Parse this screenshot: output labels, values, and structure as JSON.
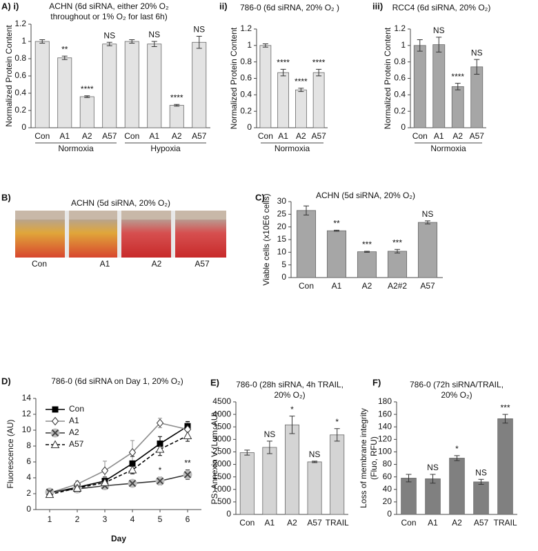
{
  "chart_data": [
    {
      "type": "bar",
      "panel": "A) i)",
      "title": [
        "ACHN (6d siRNA, either 20% O₂",
        "throughout or 1% O₂ for last 6h)"
      ],
      "ylabel": "Normalized Protein Content",
      "categories": [
        "Con",
        "A1",
        "A2",
        "A57",
        "Con",
        "A1",
        "A2",
        "A57"
      ],
      "groups": [
        "Normoxia",
        "Hypoxia"
      ],
      "values": [
        1.0,
        0.81,
        0.36,
        0.97,
        1.0,
        0.97,
        0.26,
        0.99
      ],
      "errors": [
        0.02,
        0.02,
        0.01,
        0.02,
        0.02,
        0.03,
        0.01,
        0.07
      ],
      "annotations": [
        null,
        "**",
        "****",
        "NS",
        null,
        "NS",
        "****",
        "NS"
      ],
      "color": "#e3e3e3",
      "ylim": [
        0,
        1.2
      ],
      "yticks": [
        0,
        0.2,
        0.4,
        0.6,
        0.8,
        1,
        1.2
      ]
    },
    {
      "type": "bar",
      "panel": "ii)",
      "title": [
        "786-0 (6d siRNA, 20% O₂ )"
      ],
      "ylabel": "Normalized Protein Content",
      "categories": [
        "Con",
        "A1",
        "A2",
        "A57"
      ],
      "groups": [
        "Normoxia"
      ],
      "values": [
        1.0,
        0.67,
        0.46,
        0.67
      ],
      "errors": [
        0.02,
        0.04,
        0.02,
        0.04
      ],
      "annotations": [
        null,
        "****",
        "****",
        "****"
      ],
      "color": "#e3e3e3",
      "ylim": [
        0,
        1.2
      ],
      "yticks": [
        0,
        0.2,
        0.4,
        0.6,
        0.8,
        1,
        1.2
      ]
    },
    {
      "type": "bar",
      "panel": "iii)",
      "title": [
        "RCC4 (6d siRNA, 20% O₂)"
      ],
      "ylabel": "Normalized Protein Content",
      "categories": [
        "Con",
        "A1",
        "A2",
        "A57"
      ],
      "groups": [
        "Normoxia"
      ],
      "values": [
        1.0,
        1.01,
        0.5,
        0.74
      ],
      "errors": [
        0.07,
        0.09,
        0.04,
        0.09
      ],
      "annotations": [
        null,
        "NS",
        "****",
        "NS"
      ],
      "color": "#a6a6a6",
      "ylim": [
        0,
        1.2
      ],
      "yticks": [
        0,
        0.2,
        0.4,
        0.6,
        0.8,
        1,
        1.2
      ]
    },
    {
      "type": "bar",
      "panel": "C)",
      "title": [
        "ACHN (5d siRNA, 20% O₂)"
      ],
      "ylabel": "Viable cells (x10E6 cells)",
      "categories": [
        "Con",
        "A1",
        "A2",
        "A2#2",
        "A57"
      ],
      "values": [
        26.5,
        18.5,
        10.2,
        10.4,
        21.8
      ],
      "errors": [
        1.8,
        0.2,
        0.2,
        0.7,
        0.6
      ],
      "annotations": [
        null,
        "**",
        "***",
        "***",
        "NS"
      ],
      "color": "#a6a6a6",
      "ylim": [
        0,
        30
      ],
      "yticks": [
        0,
        5,
        10,
        15,
        20,
        25,
        30
      ]
    },
    {
      "type": "line",
      "panel": "D)",
      "title": [
        "786-0 (6d siRNA on Day 1, 20% O₂)"
      ],
      "ylabel": "Fluorescence (AU)",
      "xlabel": "Day",
      "x": [
        1,
        2,
        3,
        4,
        5,
        6
      ],
      "xlim": [
        0.5,
        6.5
      ],
      "xticks": [
        1,
        2,
        3,
        4,
        5,
        6
      ],
      "ylim": [
        0,
        14
      ],
      "yticks": [
        0,
        2,
        4,
        6,
        8,
        10,
        12,
        14
      ],
      "legend": "top-left",
      "series": [
        {
          "name": "Con",
          "color": "#000000",
          "marker": "square",
          "dashed": false,
          "values": [
            2.1,
            2.8,
            3.6,
            5.8,
            8.3,
            10.5
          ],
          "errors": [
            0.2,
            0.3,
            0.5,
            0.9,
            0.9,
            0.6
          ]
        },
        {
          "name": "A1",
          "color": "#8c8c8c",
          "marker": "diamond",
          "dashed": false,
          "values": [
            2.1,
            3.2,
            4.9,
            7.2,
            10.9,
            10.1
          ],
          "errors": [
            0.2,
            0.4,
            1.2,
            1.5,
            0.6,
            0.9
          ]
        },
        {
          "name": "A2",
          "color": "#333333",
          "marker": "x",
          "dashed": false,
          "values": [
            2.2,
            2.6,
            3.0,
            3.3,
            3.6,
            4.4
          ],
          "errors": [
            0.2,
            0.3,
            0.3,
            0.3,
            0.5,
            0.6
          ],
          "annotations": [
            null,
            null,
            null,
            null,
            "*",
            "**"
          ]
        },
        {
          "name": "A57",
          "color": "#000000",
          "marker": "triangle",
          "dashed": true,
          "values": [
            1.9,
            2.7,
            3.4,
            5.0,
            7.6,
            9.3
          ],
          "errors": [
            0.2,
            0.3,
            0.4,
            0.5,
            0.8,
            0.7
          ]
        }
      ]
    },
    {
      "type": "bar",
      "panel": "E)",
      "title": [
        "786-0 (28h siRNA, 4h TRAIL,",
        "20% O₂)"
      ],
      "ylabel": "PS: Annexin V (Lum, AU)",
      "categories": [
        "Con",
        "A1",
        "A2",
        "A57",
        "TRAIL"
      ],
      "values": [
        2470,
        2680,
        3580,
        2100,
        3180
      ],
      "errors": [
        100,
        250,
        350,
        30,
        250
      ],
      "annotations": [
        null,
        "NS",
        "*",
        "NS",
        "*"
      ],
      "color": "#d4d4d4",
      "ylim": [
        0,
        4500
      ],
      "yticks": [
        0,
        500,
        1000,
        1500,
        2000,
        2500,
        3000,
        3500,
        4000,
        4500
      ]
    },
    {
      "type": "bar",
      "panel": "F)",
      "title": [
        "786-0 (72h siRNA/TRAIL,",
        "20% O₂)"
      ],
      "ylabel": [
        "Loss of membrane integrity",
        "(Fluo, RFU)"
      ],
      "categories": [
        "Con",
        "A1",
        "A2",
        "A57",
        "TRAIL"
      ],
      "values": [
        58,
        57,
        90,
        52,
        153
      ],
      "errors": [
        6,
        7,
        4,
        4,
        7
      ],
      "annotations": [
        null,
        "NS",
        "*",
        "NS",
        "***"
      ],
      "color": "#808080",
      "ylim": [
        0,
        180
      ],
      "yticks": [
        0,
        20,
        40,
        60,
        80,
        100,
        120,
        140,
        160,
        180
      ]
    }
  ],
  "photo": {
    "panel": "B)",
    "title": "ACHN (5d siRNA, 20% O₂)",
    "labels": [
      "Con",
      "A1",
      "A2",
      "A57"
    ]
  }
}
